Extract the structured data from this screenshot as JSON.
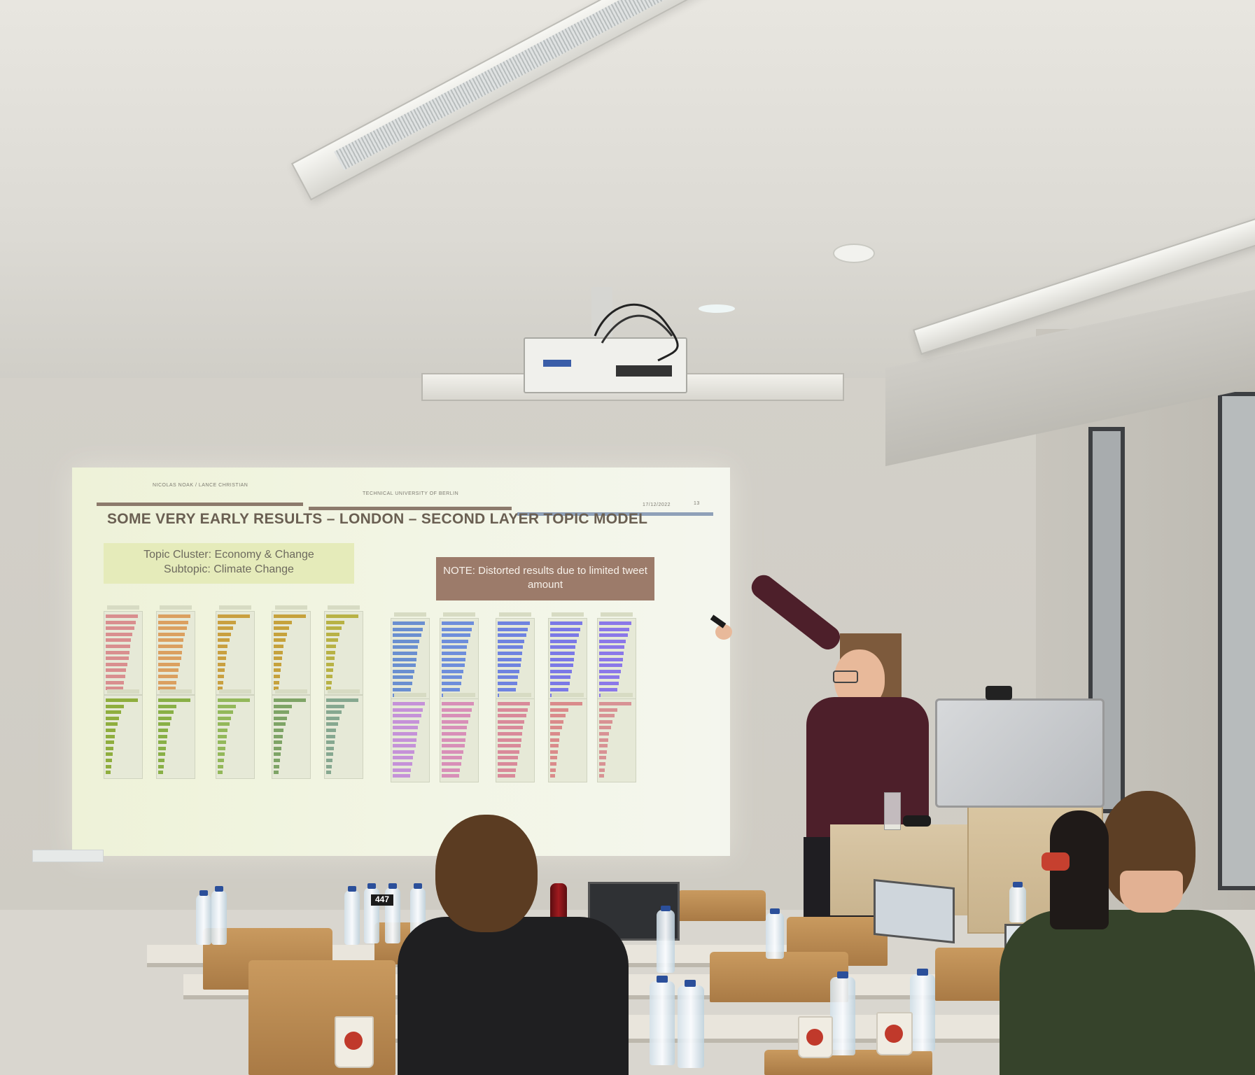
{
  "slide": {
    "header_left": "NICOLAS NOAK / LANCE CHRISTIAN",
    "header_center": "TECHNICAL UNIVERSITY OF BERLIN",
    "header_date": "17/12/2022",
    "page_number": "13",
    "title": "SOME VERY EARLY RESULTS – LONDON – SECOND LAYER TOPIC MODEL",
    "cluster_line1": "Topic Cluster: Economy & Change",
    "cluster_line2": "Subtopic: Climate Change",
    "note": "NOTE: Distorted results due to limited tweet amount"
  },
  "colors": {
    "header_rule_brown": "#8c7a6c",
    "header_rule_blue": "#8fa0b8",
    "note_bg": "#9c7b6a",
    "cluster_bg": "#e5ebba",
    "panel_colors": [
      "#d98f8f",
      "#dba060",
      "#c9a040",
      "#c6a23c",
      "#b8b245",
      "#8fae3e",
      "#89b046",
      "#93b85a",
      "#7ea466",
      "#86a890",
      "#6a8fd0",
      "#6e8edb",
      "#6f83e0",
      "#7b79e6",
      "#8b78e8",
      "#c592d8",
      "#d88fb8",
      "#d98a9a",
      "#da8b8b",
      "#d89294"
    ]
  },
  "cups": {
    "label": "447"
  }
}
